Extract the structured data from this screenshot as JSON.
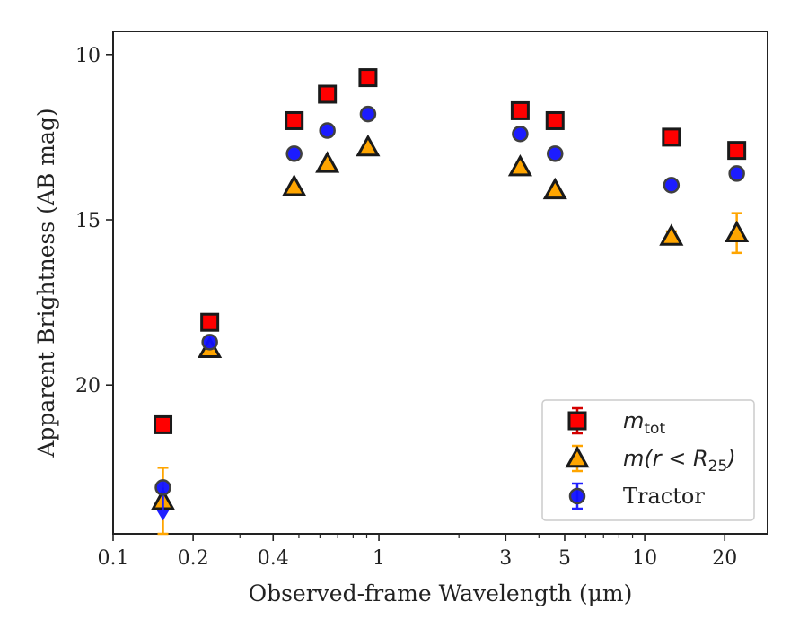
{
  "chart_data": {
    "type": "scatter",
    "title": "",
    "xlabel": "Observed-frame Wavelength (μm)",
    "ylabel": "Apparent Brightness (AB mag)",
    "xscale": "log",
    "xlim": [
      0.1,
      29
    ],
    "ylim": [
      24.5,
      9.3
    ],
    "y_inverted": true,
    "x_ticks": [
      0.1,
      0.2,
      0.4,
      1,
      3,
      5,
      10,
      20
    ],
    "x_tick_labels": [
      "0.1",
      "0.2",
      "0.4",
      "1",
      "3",
      "5",
      "10",
      "20"
    ],
    "y_ticks": [
      10,
      15,
      20
    ],
    "y_tick_labels": [
      "10",
      "15",
      "20"
    ],
    "legend_position": "lower-right",
    "series": [
      {
        "name": "m_tot",
        "label_main": "m",
        "label_sub": "tot",
        "marker": "square",
        "color": "#ff0000",
        "error_color": "#d40000",
        "points": [
          {
            "x": 0.154,
            "y": 21.2,
            "err": 0
          },
          {
            "x": 0.231,
            "y": 18.1,
            "err": 0
          },
          {
            "x": 0.48,
            "y": 12.0,
            "err": 0
          },
          {
            "x": 0.64,
            "y": 11.2,
            "err": 0
          },
          {
            "x": 0.91,
            "y": 10.7,
            "err": 0
          },
          {
            "x": 3.4,
            "y": 11.7,
            "err": 0
          },
          {
            "x": 4.6,
            "y": 12.0,
            "err": 0
          },
          {
            "x": 12.6,
            "y": 12.5,
            "err": 0
          },
          {
            "x": 22.2,
            "y": 12.9,
            "err": 0
          }
        ]
      },
      {
        "name": "m(r < R_25)",
        "label_main": "m(r < R",
        "label_sub": "25",
        "label_tail": ")",
        "marker": "triangle",
        "color": "#ffa500",
        "error_color": "#ffa500",
        "points": [
          {
            "x": 0.154,
            "y": 23.5,
            "err": 1.0
          },
          {
            "x": 0.231,
            "y": 18.9,
            "err": 0
          },
          {
            "x": 0.48,
            "y": 14.0,
            "err": 0
          },
          {
            "x": 0.64,
            "y": 13.3,
            "err": 0
          },
          {
            "x": 0.91,
            "y": 12.8,
            "err": 0
          },
          {
            "x": 3.4,
            "y": 13.4,
            "err": 0
          },
          {
            "x": 4.6,
            "y": 14.1,
            "err": 0
          },
          {
            "x": 12.6,
            "y": 15.5,
            "err": 0.15
          },
          {
            "x": 22.2,
            "y": 15.4,
            "err": 0.6
          }
        ]
      },
      {
        "name": "Tractor",
        "label_main": "Tractor",
        "marker": "circle",
        "color": "#1010ff",
        "error_color": "#2020ff",
        "points": [
          {
            "x": 0.154,
            "y": 23.1,
            "err": 0,
            "upper_limit": true
          },
          {
            "x": 0.231,
            "y": 18.7,
            "err": 0
          },
          {
            "x": 0.48,
            "y": 13.0,
            "err": 0
          },
          {
            "x": 0.64,
            "y": 12.3,
            "err": 0
          },
          {
            "x": 0.91,
            "y": 11.8,
            "err": 0
          },
          {
            "x": 3.4,
            "y": 12.4,
            "err": 0
          },
          {
            "x": 4.6,
            "y": 13.0,
            "err": 0
          },
          {
            "x": 12.6,
            "y": 13.95,
            "err": 0
          },
          {
            "x": 22.2,
            "y": 13.6,
            "err": 0
          }
        ]
      }
    ]
  }
}
